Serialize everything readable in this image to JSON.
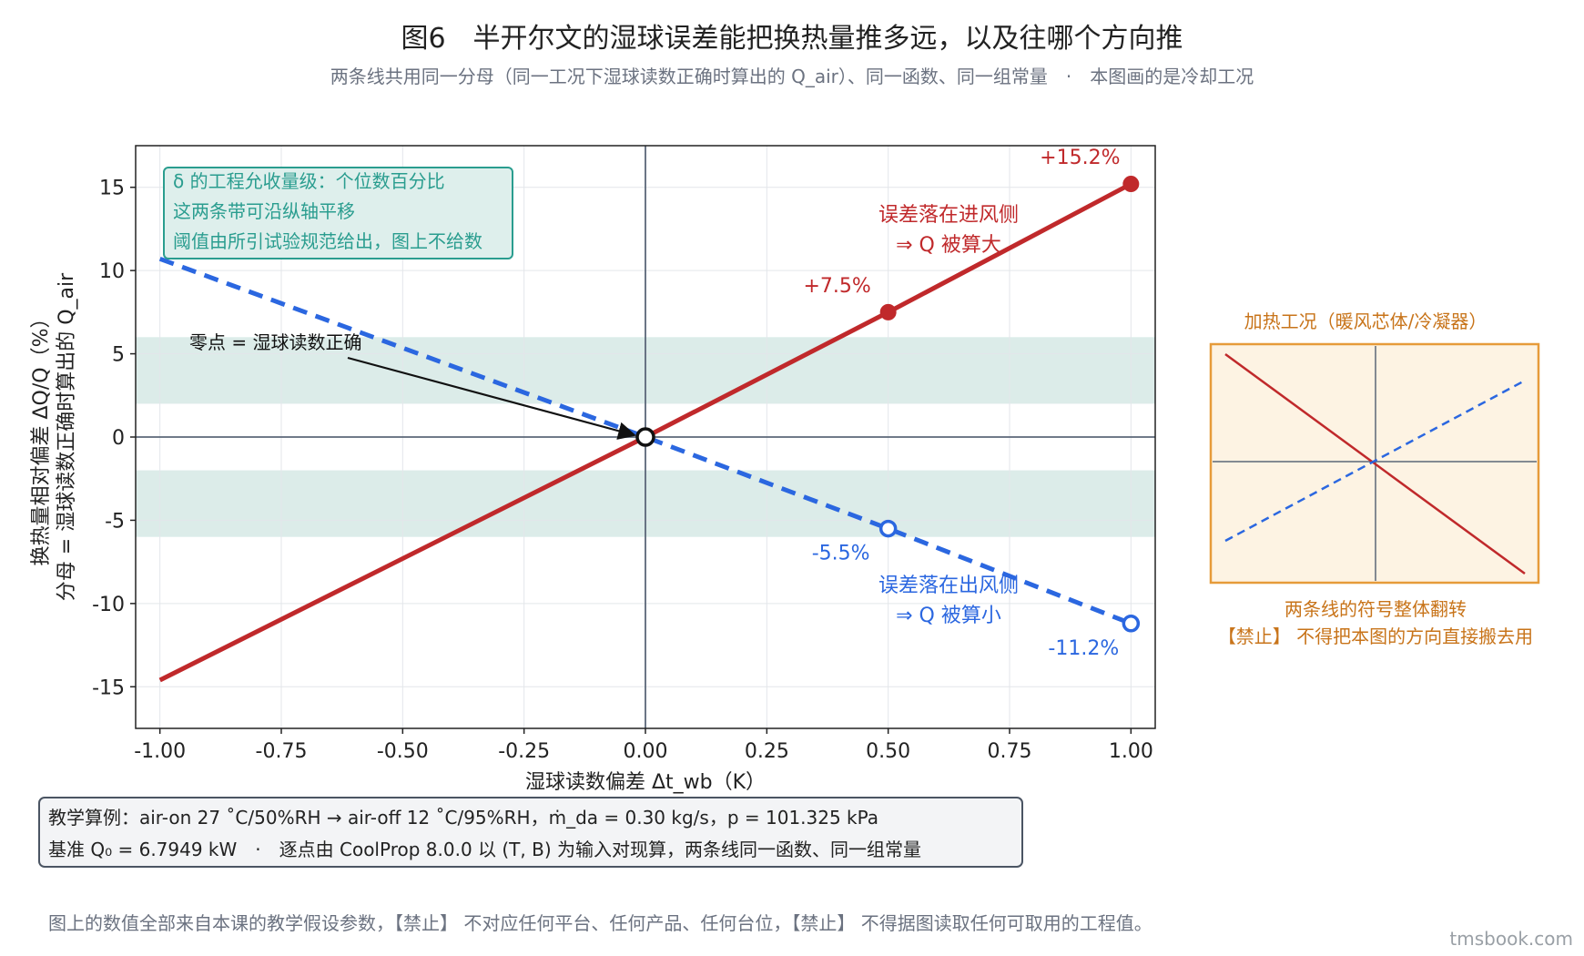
{
  "header": {
    "title": "图6　半开尔文的湿球误差能把换热量推多远，以及往哪个方向推",
    "subtitle": "两条线共用同一分母（同一工况下湿球读数正确时算出的 Q_air）、同一函数、同一组常量　·　本图画的是冷却工况"
  },
  "chart_data": {
    "type": "line",
    "xlabel": "湿球读数偏差 Δt_wb（K）",
    "ylabel_line1": "换热量相对偏差 ΔQ/Q（%）",
    "ylabel_line2": "分母 = 湿球读数正确时算出的 Q_air",
    "xlim": [
      -1.05,
      1.05
    ],
    "ylim": [
      -17.5,
      17.5
    ],
    "xticks": [
      "-1.00",
      "-0.75",
      "-0.50",
      "-0.25",
      "0.00",
      "0.25",
      "0.50",
      "0.75",
      "1.00"
    ],
    "xtick_values": [
      -1.0,
      -0.75,
      -0.5,
      -0.25,
      0.0,
      0.25,
      0.5,
      0.75,
      1.0
    ],
    "yticks": [
      "15",
      "10",
      "5",
      "0",
      "-5",
      "-10",
      "-15"
    ],
    "ytick_values": [
      15,
      10,
      5,
      0,
      -5,
      -10,
      -15
    ],
    "grid": true,
    "bands": [
      {
        "y_from": 2,
        "y_to": 6
      },
      {
        "y_from": -6,
        "y_to": -2
      }
    ],
    "series": [
      {
        "name": "误差落在进风侧",
        "style": "solid",
        "color": "#c0292b",
        "x": [
          -1.0,
          0.0,
          0.5,
          1.0
        ],
        "y": [
          -14.6,
          0.0,
          7.5,
          15.2
        ],
        "markers": [
          {
            "x": 0.5,
            "y": 7.5,
            "label": "+7.5%"
          },
          {
            "x": 1.0,
            "y": 15.2,
            "label": "+15.2%"
          }
        ],
        "annotation_line1": "误差落在进风侧",
        "annotation_line2": "⇒ Q 被算大"
      },
      {
        "name": "误差落在出风侧",
        "style": "dashed",
        "color": "#2b67e0",
        "x": [
          -1.0,
          0.0,
          0.5,
          1.0
        ],
        "y": [
          10.7,
          0.0,
          -5.5,
          -11.2
        ],
        "markers": [
          {
            "x": 0.5,
            "y": -5.5,
            "label": "-5.5%"
          },
          {
            "x": 1.0,
            "y": -11.2,
            "label": "-11.2%"
          }
        ],
        "annotation_line1": "误差落在出风侧",
        "annotation_line2": "⇒ Q 被算小"
      }
    ],
    "zero_annotation": "零点 = 湿球读数正确",
    "info_box": [
      "δ 的工程允收量级：个位数百分比",
      "这两条带可沿纵轴平移",
      "阈值由所引试验规范给出，图上不给数"
    ]
  },
  "inset": {
    "title": "加热工况（暖风芯体/冷凝器）",
    "caption_line1": "两条线的符号整体翻转",
    "caption_line2": "【禁止】 不得把本图的方向直接搬去用"
  },
  "example_box": {
    "line1": "教学算例：air-on 27 ˚C/50%RH → air-off 12 ˚C/95%RH，ṁ_da = 0.30 kg/s，p = 101.325 kPa",
    "line2": "基准 Q₀ = 6.7949 kW　·　逐点由 CoolProp 8.0.0 以 (T, B) 为输入对现算，两条线同一函数、同一组常量"
  },
  "footer": {
    "note": "图上的数值全部来自本课的教学假设参数，【禁止】 不对应任何平台、任何产品、任何台位，【禁止】 不得据图读取任何可取用的工程值。",
    "site": "tmsbook.com"
  },
  "colors": {
    "red": "#c0292b",
    "blue": "#2b67e0",
    "teal": "#2a9d8f",
    "band": "#dcece9",
    "orange": "#e69b3a",
    "orange_text": "#c8741a"
  }
}
